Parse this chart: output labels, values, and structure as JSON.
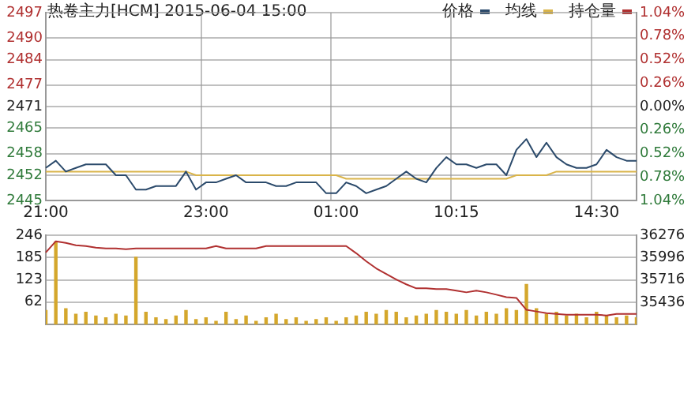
{
  "chart_data": [
    {
      "type": "line",
      "title": "热卷主力[HCM] 2015-06-04 15:00",
      "categories": [
        "21:00",
        null,
        null,
        null,
        null,
        null,
        null,
        null,
        null,
        null,
        null,
        null,
        null,
        null,
        null,
        null,
        "23:00",
        null,
        null,
        null,
        null,
        null,
        null,
        null,
        null,
        null,
        null,
        null,
        null,
        "01:00",
        null,
        null,
        null,
        null,
        null,
        null,
        null,
        null,
        null,
        null,
        null,
        "10:15",
        null,
        null,
        null,
        null,
        null,
        null,
        null,
        null,
        null,
        null,
        null,
        null,
        null,
        "14:30",
        null,
        null,
        null,
        null
      ],
      "series": [
        {
          "name": "价格",
          "color": "#2b4a6b",
          "values": [
            2454,
            2456,
            2453,
            2454,
            2455,
            2455,
            2455,
            2452,
            2452,
            2448,
            2448,
            2449,
            2449,
            2449,
            2453,
            2448,
            2450,
            2450,
            2451,
            2452,
            2450,
            2450,
            2450,
            2449,
            2449,
            2450,
            2450,
            2450,
            2447,
            2447,
            2450,
            2449,
            2447,
            2448,
            2449,
            2451,
            2453,
            2451,
            2450,
            2454,
            2457,
            2455,
            2455,
            2454,
            2455,
            2455,
            2452,
            2459,
            2462,
            2457,
            2461,
            2457,
            2455,
            2454,
            2454,
            2455,
            2459,
            2457,
            2456,
            2456
          ]
        },
        {
          "name": "均线",
          "color": "#d9b44a",
          "values": [
            2453,
            2453,
            2453,
            2453,
            2453,
            2453,
            2453,
            2453,
            2453,
            2453,
            2453,
            2453,
            2453,
            2453,
            2453,
            2452,
            2452,
            2452,
            2452,
            2452,
            2452,
            2452,
            2452,
            2452,
            2452,
            2452,
            2452,
            2452,
            2452,
            2452,
            2451,
            2451,
            2451,
            2451,
            2451,
            2451,
            2451,
            2451,
            2451,
            2451,
            2451,
            2451,
            2451,
            2451,
            2451,
            2451,
            2451,
            2452,
            2452,
            2452,
            2452,
            2453,
            2453,
            2453,
            2453,
            2453,
            2453,
            2453,
            2453,
            2453
          ]
        }
      ],
      "ylim": [
        2445,
        2497
      ],
      "yticks": [
        2445,
        2452,
        2458,
        2465,
        2471,
        2477,
        2484,
        2490,
        2497
      ],
      "y2lim": [
        -1.04,
        1.04
      ],
      "y2ticks": [
        {
          "value": -1.04,
          "label": "1.04%"
        },
        {
          "value": -0.78,
          "label": "0.78%"
        },
        {
          "value": -0.52,
          "label": "0.52%"
        },
        {
          "value": -0.26,
          "label": "0.26%"
        },
        {
          "value": 0,
          "label": "0.00%"
        },
        {
          "value": 0.26,
          "label": "0.26%"
        },
        {
          "value": 0.52,
          "label": "0.52%"
        },
        {
          "value": 0.78,
          "label": "0.78%"
        },
        {
          "value": 1.04,
          "label": "1.04%"
        }
      ],
      "grid": true,
      "legend": "top right"
    },
    {
      "type": "bar",
      "categories": [
        null,
        null,
        null,
        null,
        null,
        null,
        null,
        null,
        null,
        null,
        null,
        null,
        null,
        null,
        null,
        null,
        null,
        null,
        null,
        null,
        null,
        null,
        null,
        null,
        null,
        null,
        null,
        null,
        null,
        null,
        null,
        null,
        null,
        null,
        null,
        null,
        null,
        null,
        null,
        null,
        null,
        null,
        null,
        null,
        null,
        null,
        null,
        null,
        null,
        null,
        null,
        null,
        null,
        null,
        null,
        null,
        null,
        null,
        null,
        null
      ],
      "series": [
        {
          "color": "#d4a72c",
          "values": [
            40,
            229,
            45,
            30,
            35,
            25,
            20,
            30,
            25,
            187,
            35,
            20,
            15,
            25,
            40,
            15,
            20,
            10,
            35,
            15,
            25,
            10,
            20,
            30,
            15,
            20,
            10,
            15,
            20,
            10,
            20,
            25,
            35,
            30,
            40,
            35,
            20,
            25,
            30,
            40,
            35,
            30,
            40,
            25,
            35,
            30,
            45,
            40,
            112,
            45,
            30,
            35,
            25,
            30,
            20,
            35,
            25,
            20,
            25,
            20
          ]
        },
        {
          "name": "持仓量",
          "type": "line",
          "axis": "y2",
          "color": "#b03030",
          "values": [
            36060,
            36200,
            36180,
            36150,
            36140,
            36120,
            36110,
            36110,
            36100,
            36110,
            36110,
            36110,
            36110,
            36110,
            36110,
            36110,
            36110,
            36140,
            36110,
            36110,
            36110,
            36110,
            36140,
            36140,
            36140,
            36140,
            36140,
            36140,
            36140,
            36140,
            36140,
            36050,
            35950,
            35860,
            35790,
            35720,
            35660,
            35610,
            35610,
            35600,
            35600,
            35580,
            35560,
            35580,
            35560,
            35530,
            35500,
            35490,
            35340,
            35320,
            35300,
            35290,
            35280,
            35280,
            35280,
            35280,
            35270,
            35290,
            35290,
            35290
          ]
        }
      ],
      "ylim": [
        0,
        246
      ],
      "yticks": [
        62,
        123,
        185,
        246
      ],
      "y2lim": [
        35156,
        36276
      ],
      "y2ticks": [
        35436,
        35716,
        35996,
        36276
      ],
      "grid": true,
      "tick_labels": "y"
    }
  ]
}
